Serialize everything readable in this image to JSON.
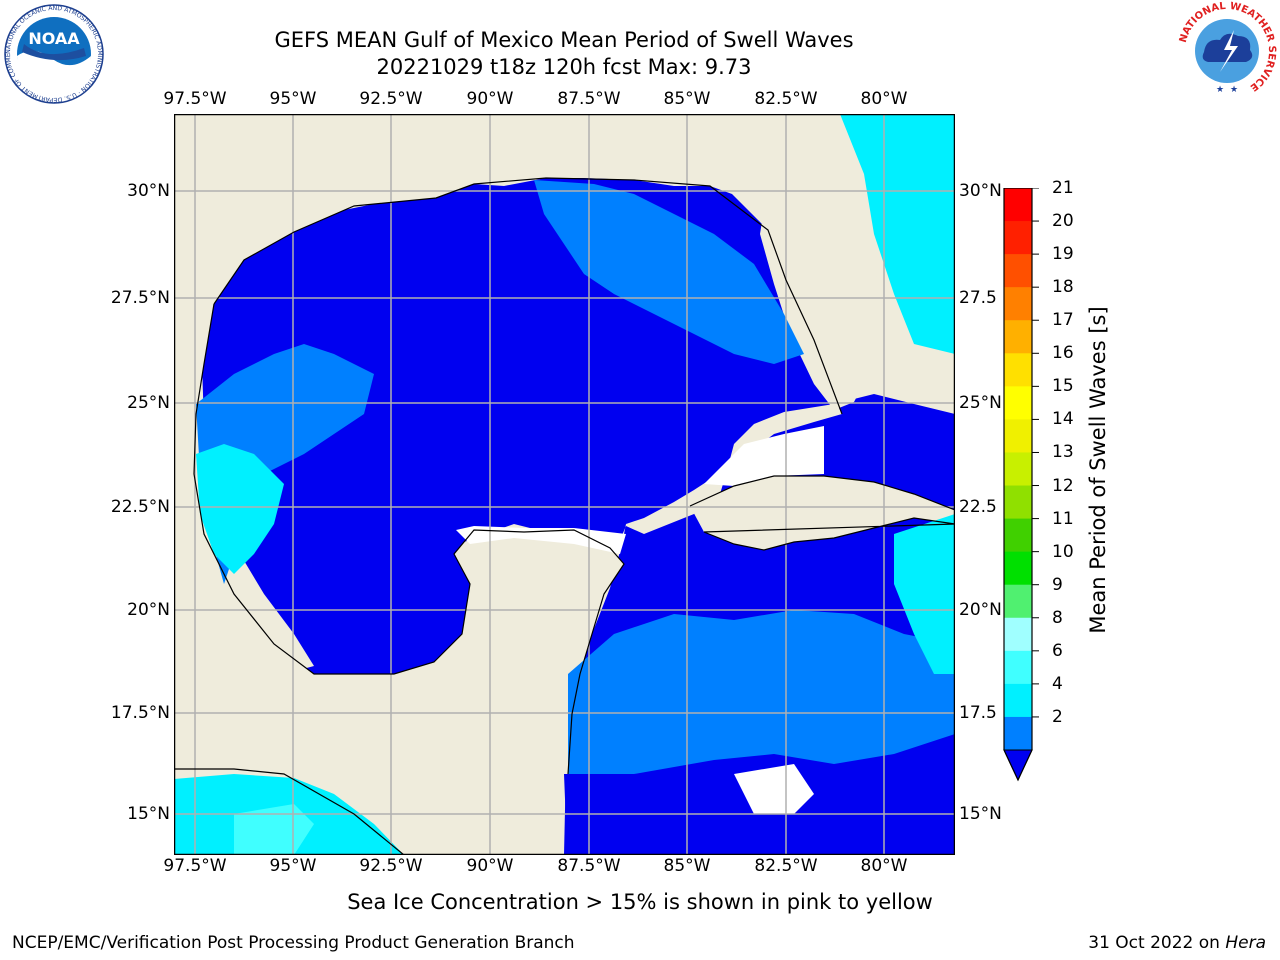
{
  "titles": {
    "line1": "GEFS MEAN Gulf of Mexico Mean Period of Swell Waves",
    "line2": "20221029 t18z 120h fcst   Max: 9.73"
  },
  "logos": {
    "left": "NOAA",
    "left_ring": "NATIONAL OCEANIC AND ATMOSPHERIC ADMINISTRATION · U.S. DEPARTMENT OF COMMERCE",
    "right_ring": "NATIONAL WEATHER SERVICE"
  },
  "map": {
    "lon_ticks": [
      "97.5°W",
      "95°W",
      "92.5°W",
      "90°W",
      "87.5°W",
      "85°W",
      "82.5°W",
      "80°W"
    ],
    "lat_ticks_left": [
      "30°N",
      "27.5°N",
      "25°N",
      "22.5°N",
      "20°N",
      "17.5°N",
      "15°N"
    ],
    "lat_ticks_right": [
      "30°N",
      "27.5",
      "25°N",
      "22.5",
      "20°N",
      "17.5",
      "15°N"
    ],
    "colors": {
      "land": "#efecdc",
      "band_2_4": "#0000f0",
      "band_4_6": "#0080ff",
      "band_6_8": "#00f0ff",
      "band_8_9": "#40ffff",
      "no_data": "#ffffff",
      "grid": "#b0b0b0"
    }
  },
  "colorbar": {
    "title": "Mean Period of Swell Waves [s]",
    "labels": [
      "21",
      "20",
      "19",
      "18",
      "17",
      "16",
      "15",
      "14",
      "13",
      "12",
      "11",
      "10",
      "9",
      "8",
      "6",
      "4",
      "2"
    ],
    "colors": [
      "#0000f0",
      "#0080ff",
      "#00f0ff",
      "#40ffff",
      "#a0ffff",
      "#50f070",
      "#00e000",
      "#40d000",
      "#90e000",
      "#c8f000",
      "#f0f000",
      "#ffff00",
      "#ffe000",
      "#ffb000",
      "#ff8000",
      "#ff5000",
      "#ff2000",
      "#ff0000"
    ]
  },
  "footer": {
    "note": "Sea Ice Concentration > 15% is shown in pink to yellow",
    "credit_left": "NCEP/EMC/Verification Post Processing Product Generation Branch",
    "credit_right_date": "31 Oct 2022 on ",
    "credit_right_host": "Hera"
  }
}
